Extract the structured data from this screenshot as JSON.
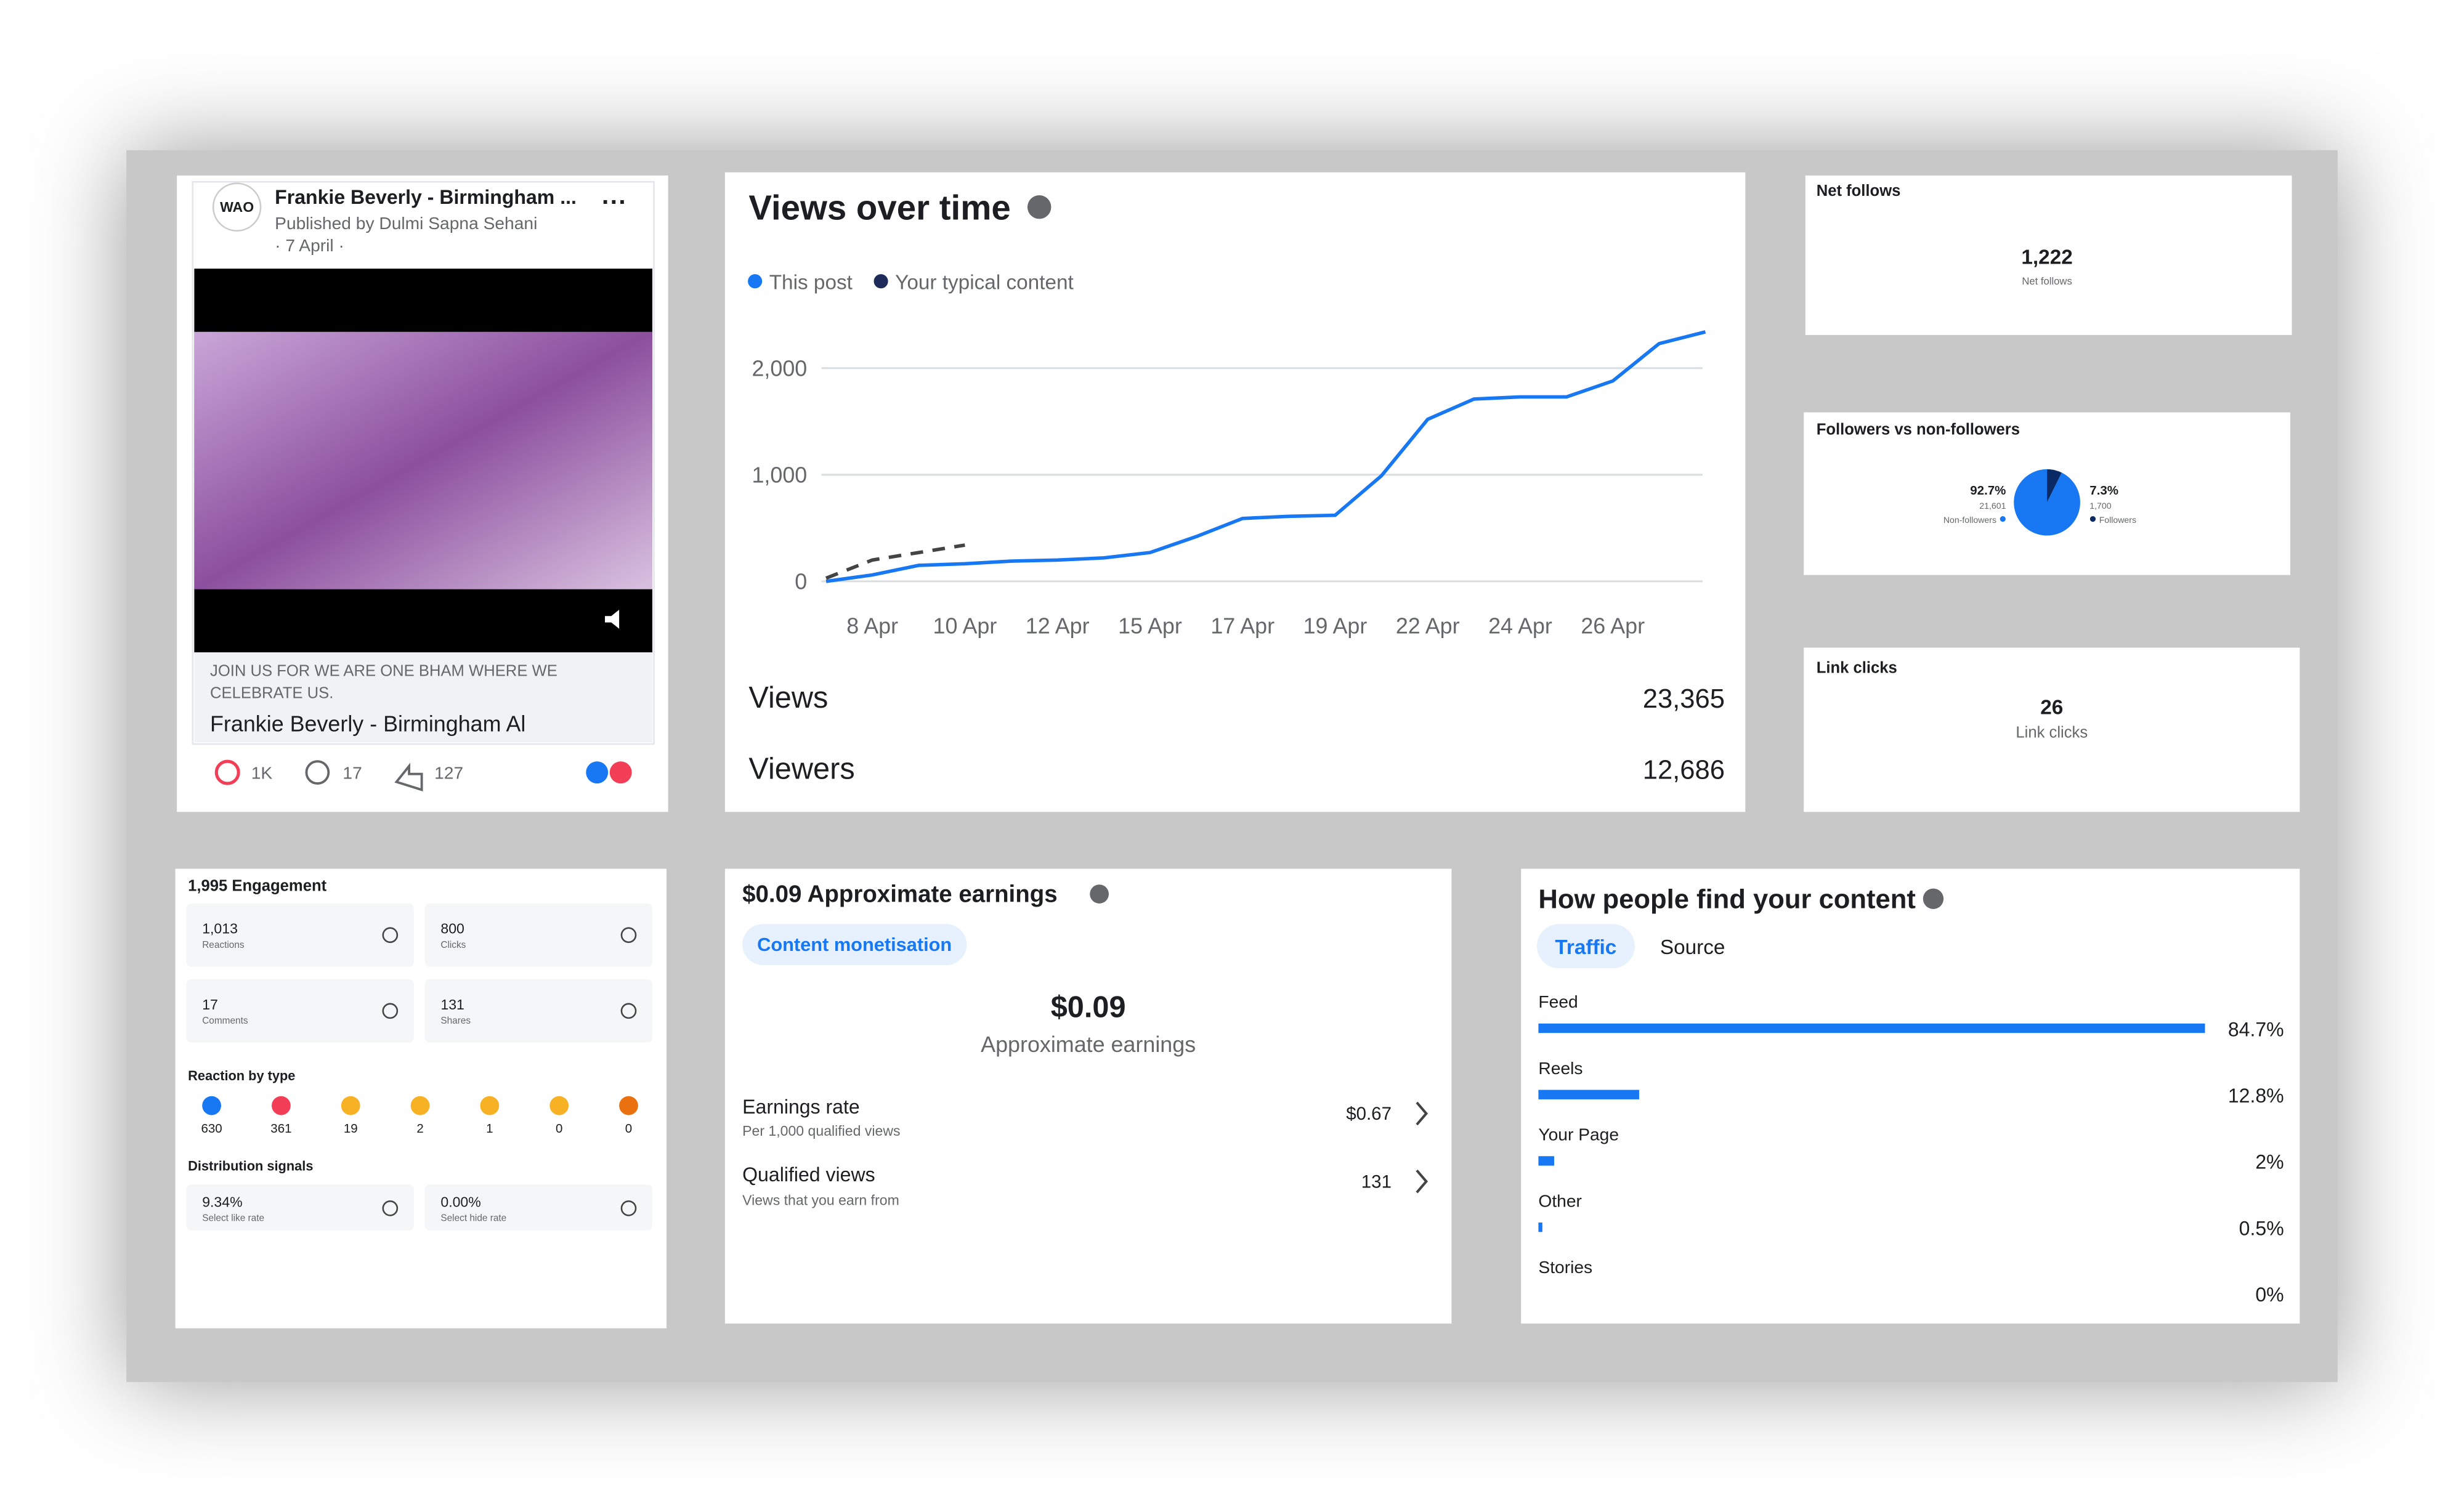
{
  "post": {
    "logo": "WAO",
    "title": "Frankie Beverly - Birmingham ...",
    "publisher": "Published by Dulmi Sapna Sehani",
    "date": "· 7 April ·",
    "caption_lines": [
      "JOIN US FOR WE ARE ONE BHAM WHERE WE",
      "CELEBRATE US."
    ],
    "link_title": "Frankie Beverly - Birmingham Al",
    "reactions": "1K",
    "comments": "17",
    "shares": "127"
  },
  "views_summary": {
    "rows": [
      [
        "Views",
        "23,365"
      ],
      [
        "Viewers",
        "12,686"
      ]
    ]
  },
  "net_follows": {
    "title": "Net follows",
    "value": "1,222",
    "label": "Net follows"
  },
  "link_clicks": {
    "title": "Link clicks",
    "value": "26",
    "label": "Link clicks"
  },
  "engagement": {
    "title": "1,995 Engagement",
    "tiles": [
      [
        "1,013",
        "Reactions"
      ],
      [
        "800",
        "Clicks"
      ],
      [
        "17",
        "Comments"
      ],
      [
        "131",
        "Shares"
      ]
    ],
    "reaction_title": "Reaction by type",
    "reaction_counts": [
      "630",
      "361",
      "19",
      "2",
      "1",
      "0",
      "0"
    ],
    "signals_title": "Distribution signals",
    "signals": [
      [
        "9.34%",
        "Select like rate"
      ],
      [
        "0.00%",
        "Select hide rate"
      ]
    ]
  },
  "earnings": {
    "title": "$0.09 Approximate earnings",
    "tab": "Content monetisation",
    "amount": "$0.09",
    "amount_label": "Approximate earnings",
    "rows": [
      [
        "Earnings rate",
        "Per 1,000 qualified views",
        "$0.67"
      ],
      [
        "Qualified views",
        "Views that you earn from",
        "131"
      ]
    ]
  },
  "find_tabs": [
    "Traffic",
    "Source"
  ],
  "chart_data": [
    {
      "type": "line",
      "title": "Views over time",
      "categories": [
        null,
        "8 Apr",
        null,
        "10 Apr",
        null,
        "12 Apr",
        null,
        "15 Apr",
        null,
        "17 Apr",
        null,
        "19 Apr",
        null,
        "22 Apr",
        null,
        "24 Apr",
        null,
        "26 Apr",
        null,
        null
      ],
      "series": [
        {
          "name": "This post",
          "color": "#1877f2",
          "values": [
            0,
            60,
            150,
            165,
            190,
            200,
            220,
            270,
            420,
            590,
            610,
            620,
            990,
            1520,
            1710,
            1730,
            1730,
            1880,
            2230,
            2340
          ]
        },
        {
          "name": "Your typical content",
          "color": "#1c2b5a",
          "values": [
            30,
            200,
            270,
            340,
            null,
            null,
            null,
            null,
            null,
            null,
            null,
            null,
            null,
            null,
            null,
            null,
            null,
            null,
            null,
            null
          ]
        }
      ],
      "ylim": [
        0,
        2400
      ],
      "yticks": [
        0,
        {
          "value": 1000,
          "label": "1,000"
        },
        {
          "value": 2000,
          "label": "2,000"
        }
      ],
      "grid": true
    },
    {
      "type": "pie",
      "title": "Followers vs non-followers",
      "categories": [
        "Non-followers",
        "Followers"
      ],
      "values": [
        92.7,
        7.3
      ],
      "value_labels": [
        "92.7%",
        "7.3%"
      ],
      "counts": [
        21601,
        1700
      ],
      "count_labels": [
        "21,601",
        "1,700"
      ],
      "colors": [
        "#1877f2",
        "#0a2a66"
      ]
    },
    {
      "type": "hbar",
      "title": "How people find your content",
      "categories": [
        "Feed",
        "Reels",
        "Your Page",
        "Other",
        "Stories"
      ],
      "values": [
        84.7,
        12.8,
        2,
        0.5,
        0
      ],
      "value_labels": [
        "84.7%",
        "12.8%",
        "2%",
        "0.5%",
        "0%"
      ],
      "color": "#1877f2"
    }
  ]
}
